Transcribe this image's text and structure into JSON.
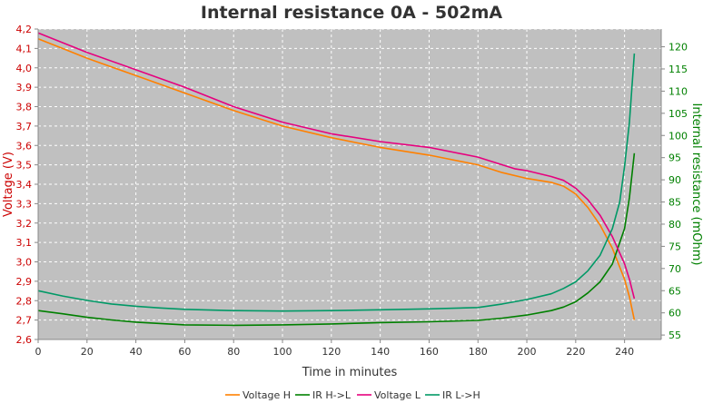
{
  "chart_data": {
    "type": "line",
    "title": "Internal resistance  0A - 502mA",
    "xlabel": "Time in minutes",
    "ylabel_left": "Voltage (V)",
    "ylabel_right": "Internal resistance (mOhm)",
    "xlim": [
      0,
      255
    ],
    "ylim_left": [
      2.6,
      4.2
    ],
    "ylim_right": [
      54,
      124
    ],
    "x_ticks": [
      0,
      20,
      40,
      60,
      80,
      100,
      120,
      140,
      160,
      180,
      200,
      220,
      240
    ],
    "y_left_ticks": [
      "2,6",
      "2,7",
      "2,8",
      "2,9",
      "3,0",
      "3,1",
      "3,2",
      "3,3",
      "3,4",
      "3,5",
      "3,6",
      "3,7",
      "3,8",
      "3,9",
      "4,0",
      "4,1",
      "4,2"
    ],
    "y_right_ticks": [
      55,
      60,
      65,
      70,
      75,
      80,
      85,
      90,
      95,
      100,
      105,
      110,
      115,
      120
    ],
    "grid": true,
    "legend_position": "bottom",
    "colors": {
      "voltage_h": "#ff8000",
      "ir_hl": "#008000",
      "voltage_l": "#e6007e",
      "ir_lh": "#009966",
      "left_axis": "#cc0000",
      "right_axis": "#008000",
      "plot_bg": "#c0c0c0"
    },
    "series": [
      {
        "name": "Voltage H",
        "axis": "left",
        "x": [
          0,
          10,
          20,
          40,
          60,
          80,
          100,
          120,
          140,
          160,
          180,
          190,
          200,
          210,
          215,
          220,
          225,
          230,
          235,
          240,
          242,
          244
        ],
        "y": [
          4.15,
          4.1,
          4.05,
          3.96,
          3.87,
          3.78,
          3.7,
          3.64,
          3.59,
          3.55,
          3.5,
          3.46,
          3.43,
          3.41,
          3.39,
          3.35,
          3.28,
          3.19,
          3.07,
          2.91,
          2.82,
          2.7
        ]
      },
      {
        "name": "IR H->L",
        "axis": "right",
        "x": [
          0,
          10,
          20,
          30,
          40,
          50,
          60,
          80,
          100,
          120,
          140,
          160,
          180,
          190,
          200,
          210,
          215,
          220,
          225,
          230,
          235,
          240,
          242,
          244
        ],
        "y": [
          60.5,
          59.8,
          59.0,
          58.4,
          57.9,
          57.6,
          57.3,
          57.2,
          57.3,
          57.5,
          57.8,
          58.0,
          58.3,
          58.8,
          59.5,
          60.5,
          61.3,
          62.5,
          64.5,
          67.0,
          71.0,
          79.0,
          86.0,
          96.0
        ]
      },
      {
        "name": "Voltage L",
        "axis": "left",
        "x": [
          0,
          10,
          20,
          40,
          60,
          80,
          100,
          120,
          140,
          160,
          180,
          190,
          195,
          200,
          210,
          215,
          220,
          225,
          230,
          235,
          240,
          242,
          244
        ],
        "y": [
          4.18,
          4.13,
          4.08,
          3.99,
          3.9,
          3.8,
          3.72,
          3.66,
          3.62,
          3.59,
          3.54,
          3.5,
          3.48,
          3.47,
          3.44,
          3.42,
          3.38,
          3.32,
          3.24,
          3.13,
          2.99,
          2.91,
          2.81
        ]
      },
      {
        "name": "IR L->H",
        "axis": "right",
        "x": [
          0,
          10,
          20,
          30,
          40,
          50,
          60,
          80,
          100,
          120,
          140,
          160,
          180,
          190,
          200,
          210,
          215,
          220,
          225,
          230,
          235,
          238,
          240,
          242,
          244
        ],
        "y": [
          65.0,
          63.8,
          62.8,
          62.0,
          61.5,
          61.1,
          60.8,
          60.5,
          60.4,
          60.5,
          60.7,
          60.9,
          61.2,
          62.0,
          63.0,
          64.3,
          65.5,
          67.0,
          69.5,
          73.0,
          79.0,
          85.0,
          93.0,
          103.0,
          118.5
        ]
      }
    ]
  }
}
